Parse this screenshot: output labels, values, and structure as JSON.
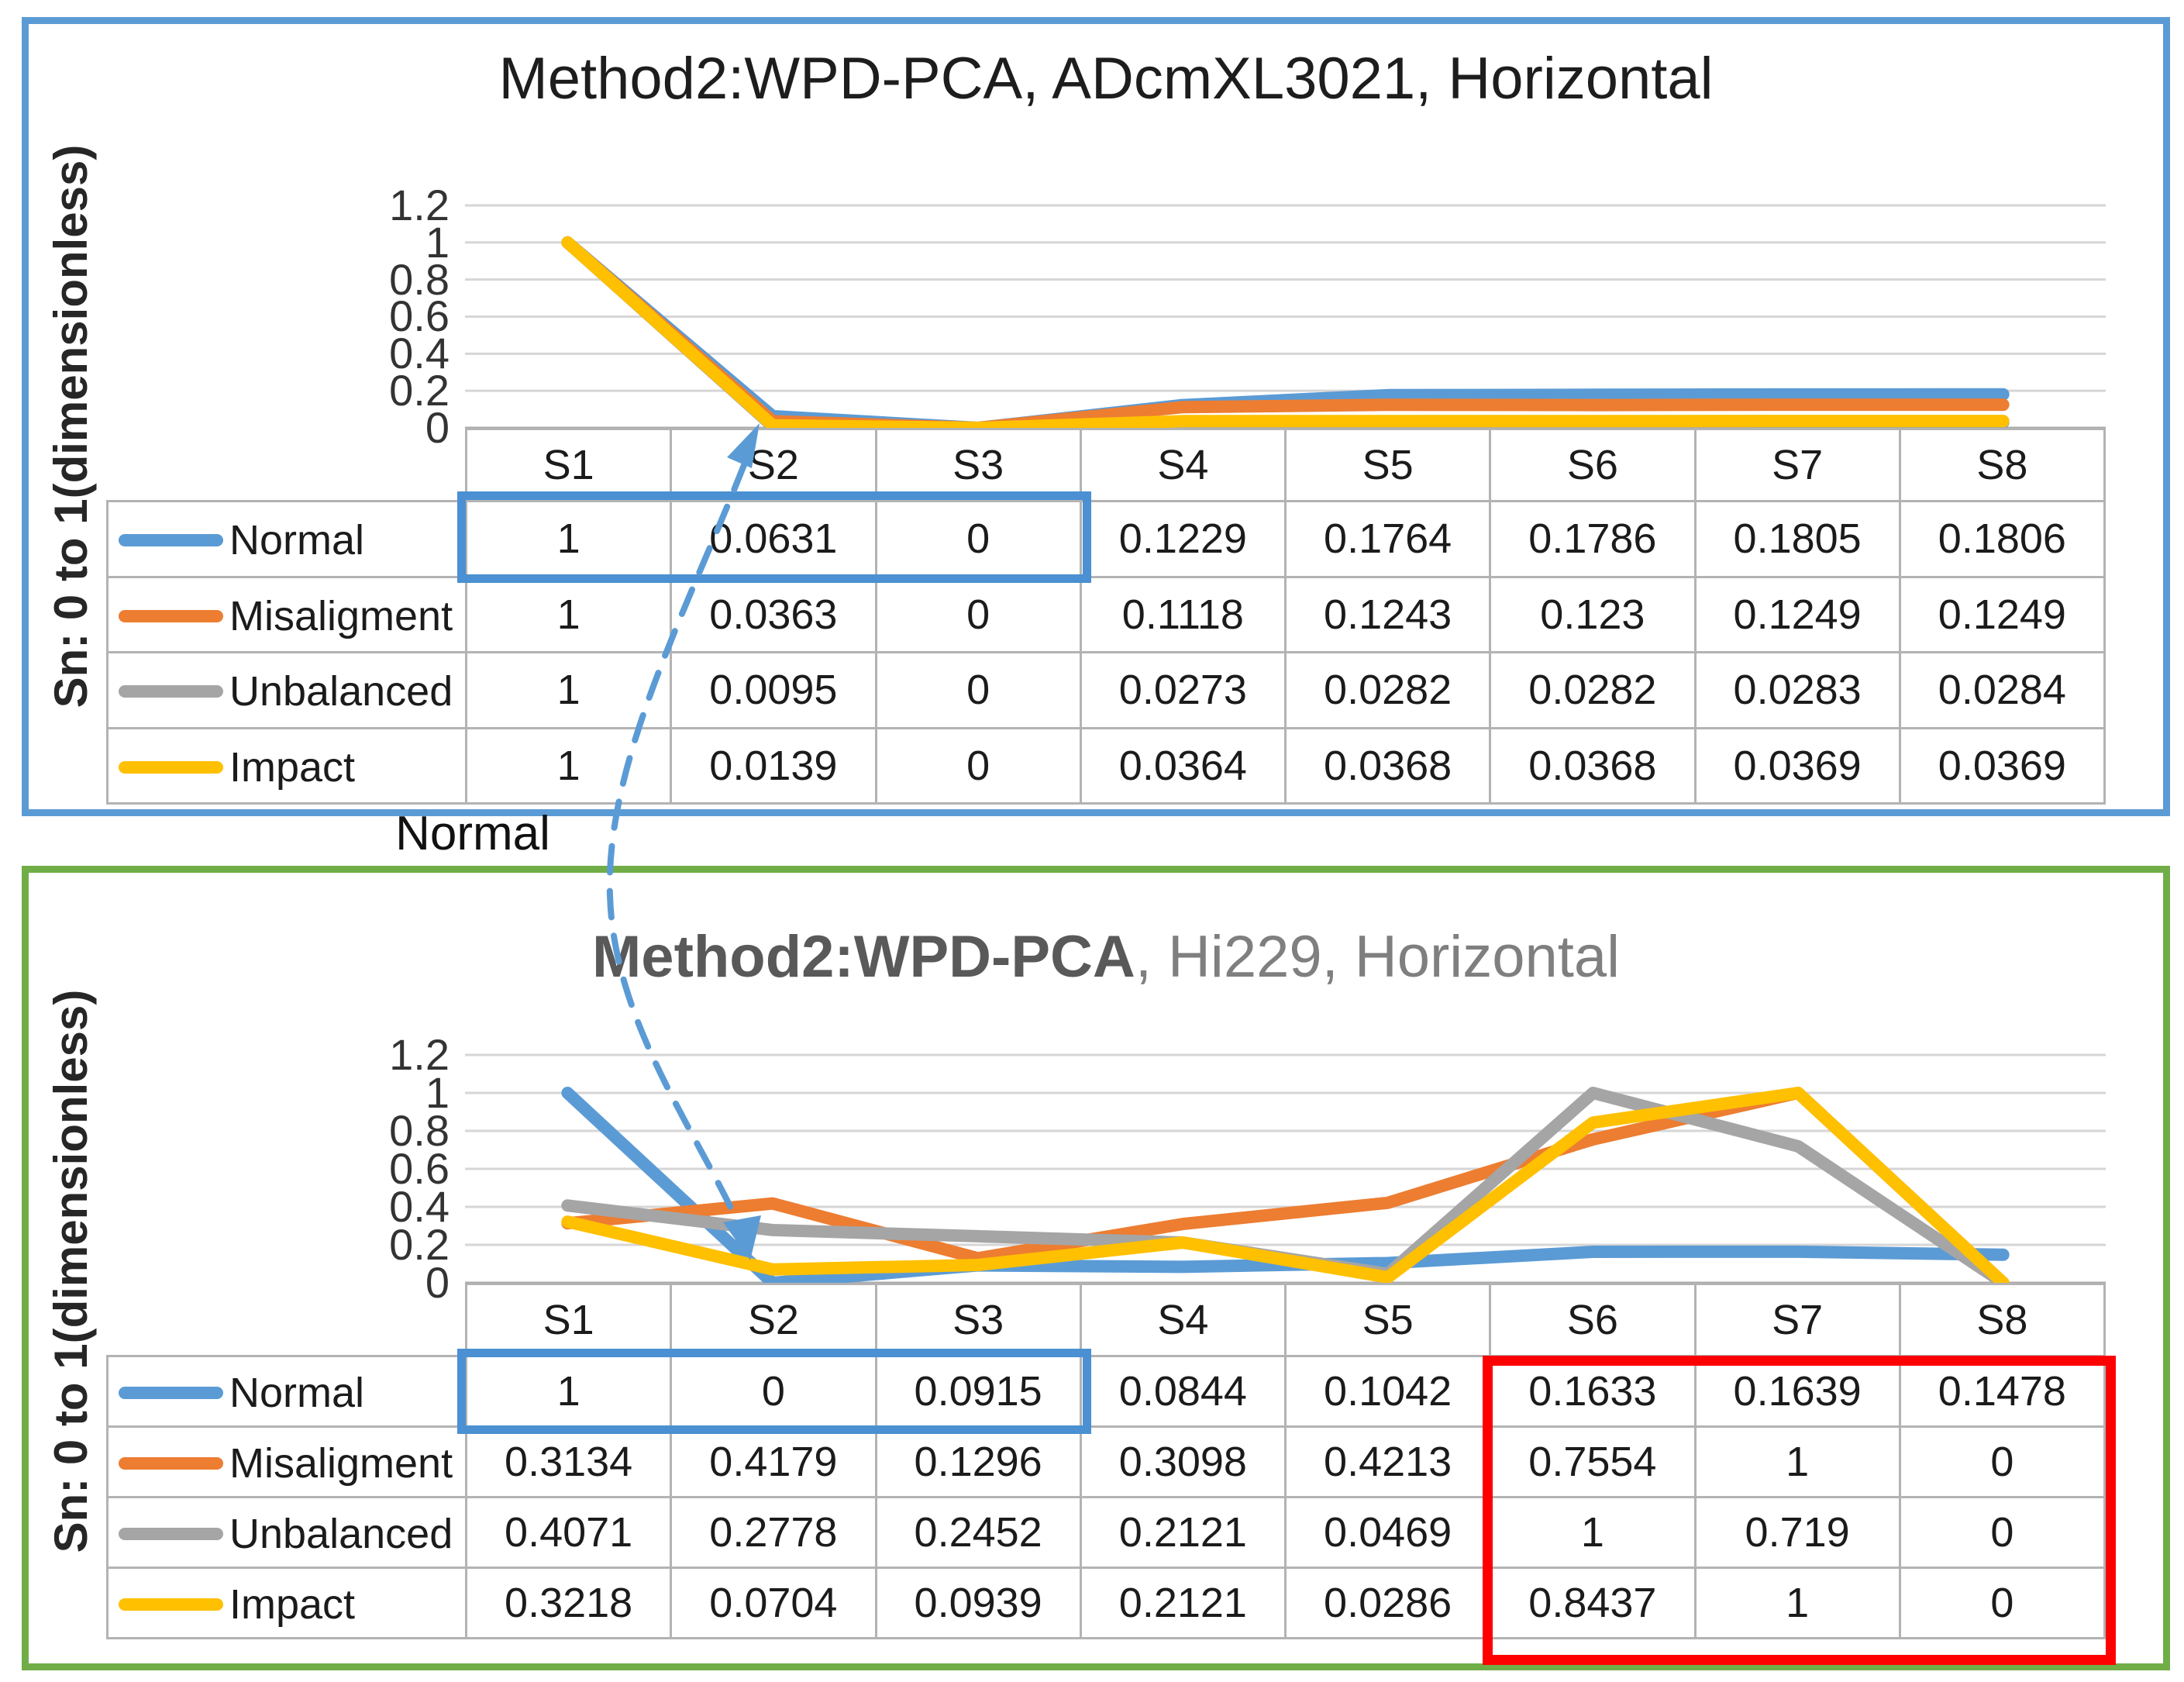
{
  "colors": {
    "page_bg": "#ffffff",
    "panel_top_border": "#5B9BD5",
    "panel_bottom_border": "#70AD47",
    "gridline": "#D6D6D6",
    "axis_line": "#ABABAB",
    "table_border": "#B3B3B3",
    "selection_blue": "#4A90D2",
    "selection_red": "#FF0000",
    "connector_blue": "#5B9BD5"
  },
  "callout": {
    "label": "Normal"
  },
  "chart_data": [
    {
      "type": "line",
      "title": "Method2:WPD-PCA, ADcmXL3021, Horizontal",
      "ylabel": "Sn: 0 to 1(dimensionless)",
      "xlabel": "",
      "categories": [
        "S1",
        "S2",
        "S3",
        "S4",
        "S5",
        "S6",
        "S7",
        "S8"
      ],
      "ylim": [
        0,
        1.2
      ],
      "ytick_labels": [
        "1.2",
        "1",
        "0.8",
        "0.6",
        "0.4",
        "0.2",
        "0"
      ],
      "grid": true,
      "legend_position": "table-left",
      "series": [
        {
          "name": "Normal",
          "color": "#5B9BD5",
          "values": [
            "1",
            "0.0631",
            "0",
            "0.1229",
            "0.1764",
            "0.1786",
            "0.1805",
            "0.1806"
          ]
        },
        {
          "name": "Misaligment",
          "color": "#ED7D31",
          "values": [
            "1",
            "0.0363",
            "0",
            "0.1118",
            "0.1243",
            "0.123",
            "0.1249",
            "0.1249"
          ]
        },
        {
          "name": "Unbalanced",
          "color": "#A5A5A5",
          "values": [
            "1",
            "0.0095",
            "0",
            "0.0273",
            "0.0282",
            "0.0282",
            "0.0283",
            "0.0284"
          ]
        },
        {
          "name": "Impact",
          "color": "#FFC000",
          "values": [
            "1",
            "0.0139",
            "0",
            "0.0364",
            "0.0368",
            "0.0368",
            "0.0369",
            "0.0369"
          ]
        }
      ],
      "annotations": [
        {
          "type": "highlight-box",
          "color": "#4A90D2",
          "target": "row Normal, columns S1-S3"
        },
        {
          "type": "dashed-arrow",
          "color": "#5B9BD5",
          "target": "points to S2 value of Normal series, labeled by callout Normal"
        }
      ]
    },
    {
      "type": "line",
      "title": "Method2:WPD-PCA, Hi229, Horizontal",
      "title_parts": {
        "bold": "Method2:WPD-PCA",
        "rest": ", Hi229, Horizontal"
      },
      "ylabel": "Sn: 0 to 1(dimensionless)",
      "xlabel": "",
      "categories": [
        "S1",
        "S2",
        "S3",
        "S4",
        "S5",
        "S6",
        "S7",
        "S8"
      ],
      "ylim": [
        0,
        1.2
      ],
      "ytick_labels": [
        "1.2",
        "1",
        "0.8",
        "0.6",
        "0.4",
        "0.2",
        "0"
      ],
      "grid": true,
      "legend_position": "table-left",
      "series": [
        {
          "name": "Normal",
          "color": "#5B9BD5",
          "values": [
            "1",
            "0",
            "0.0915",
            "0.0844",
            "0.1042",
            "0.1633",
            "0.1639",
            "0.1478"
          ]
        },
        {
          "name": "Misaligment",
          "color": "#ED7D31",
          "values": [
            "0.3134",
            "0.4179",
            "0.1296",
            "0.3098",
            "0.4213",
            "0.7554",
            "1",
            "0"
          ]
        },
        {
          "name": "Unbalanced",
          "color": "#A5A5A5",
          "values": [
            "0.4071",
            "0.2778",
            "0.2452",
            "0.2121",
            "0.0469",
            "1",
            "0.719",
            "0"
          ]
        },
        {
          "name": "Impact",
          "color": "#FFC000",
          "values": [
            "0.3218",
            "0.0704",
            "0.0939",
            "0.2121",
            "0.0286",
            "0.8437",
            "1",
            "0"
          ]
        }
      ],
      "annotations": [
        {
          "type": "highlight-box",
          "color": "#4A90D2",
          "target": "row Normal, columns S1-S3"
        },
        {
          "type": "highlight-box",
          "color": "#FF0000",
          "target": "all rows, columns S6-S8"
        },
        {
          "type": "dashed-arrow",
          "color": "#5B9BD5",
          "target": "points to S2 value of Normal series, labeled by callout Normal"
        }
      ]
    }
  ]
}
